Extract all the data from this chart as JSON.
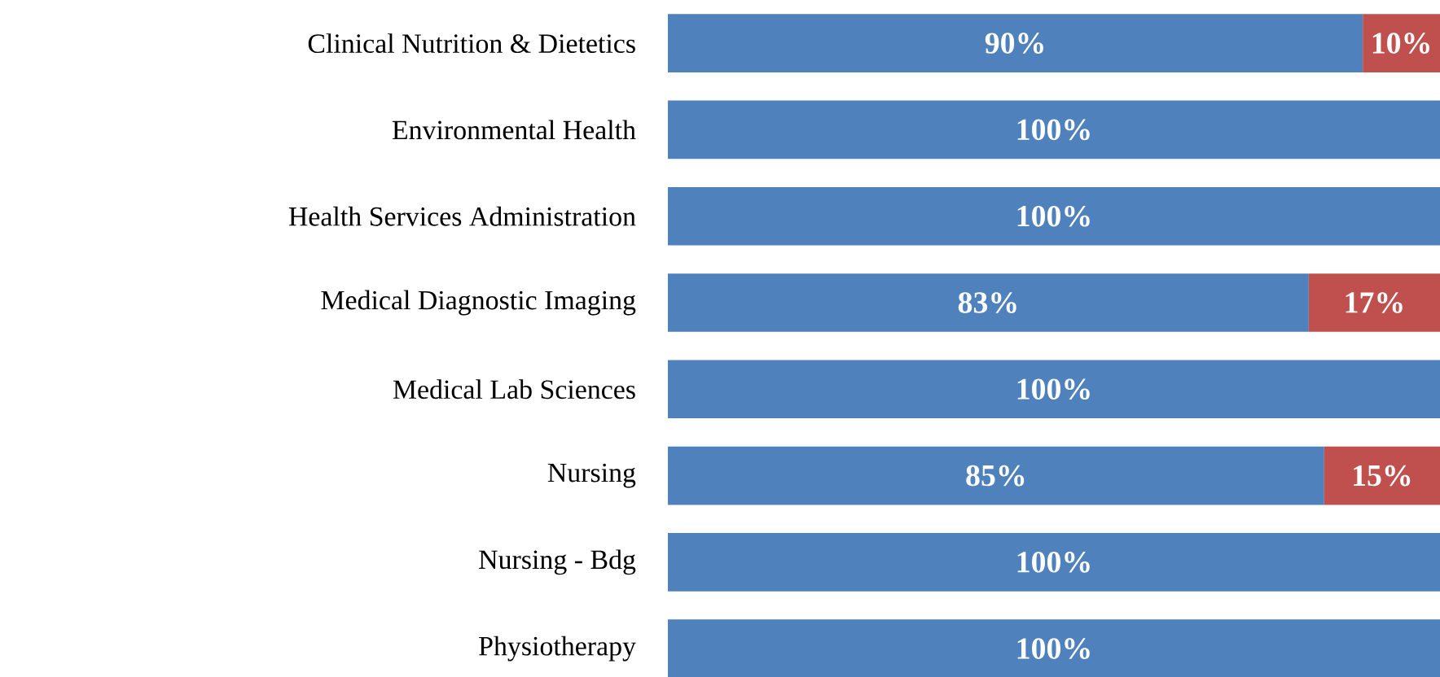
{
  "chart_data": {
    "type": "bar",
    "orientation": "horizontal",
    "stacked": true,
    "tick_labels": "y",
    "categories": [
      "Clinical Nutrition & Dietetics",
      "Environmental Health",
      "Health Services Administration",
      "Medical Diagnostic Imaging",
      "Medical Lab Sciences",
      "Nursing",
      "Nursing - Bdg",
      "Physiotherapy"
    ],
    "series": [
      {
        "color": "#4f81bd",
        "values": [
          90,
          100,
          100,
          83,
          100,
          85,
          100,
          100
        ],
        "value_labels": [
          "90%",
          "100%",
          "100%",
          "83%",
          "100%",
          "85%",
          "100%",
          "100%"
        ]
      },
      {
        "color": "#c0504d",
        "values": [
          10,
          null,
          null,
          17,
          null,
          15,
          null,
          null
        ],
        "value_labels": [
          "10%",
          null,
          null,
          "17%",
          null,
          "15%",
          null,
          null
        ]
      }
    ]
  }
}
